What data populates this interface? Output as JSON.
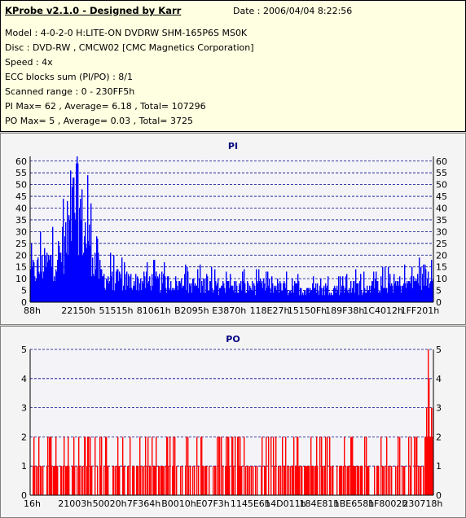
{
  "header": {
    "title": "KProbe v2.1.0 - Designed by Karr",
    "date": "Date : 2006/04/04 8:22:56",
    "lines": [
      "Model : 4-0-2-0 H:LITE-ON DVDRW SHM-165P6S MS0K",
      "Disc : DVD-RW , CMCW02 [CMC Magnetics Corporation]",
      "Speed : 4x",
      "ECC blocks sum (PI/PO) : 8/1",
      "Scanned range : 0 - 230FF5h",
      "PI Max= 62 , Average= 6.18 , Total= 107296",
      "PO Max= 5 , Average= 0.03 , Total= 3725"
    ]
  },
  "colors": {
    "pi_fill": "#0000ff",
    "po_fill": "#ff0000",
    "title_text": "#000080",
    "grid": "#00008b",
    "info_bg": "#ffffe1"
  },
  "chart_data": [
    {
      "type": "bar",
      "title": "PI",
      "ylim": [
        0,
        62
      ],
      "yticks": [
        0,
        5,
        10,
        15,
        20,
        25,
        30,
        35,
        40,
        45,
        50,
        55,
        60
      ],
      "xtick_labels": [
        "88h",
        "22150h",
        "51515h",
        "81061h",
        "B2095h",
        "E3870h",
        "118E27h",
        "15150Fh",
        "189F38h",
        "1C4012h",
        "1FF201h"
      ],
      "grid": true,
      "max": 62,
      "average": 6.18,
      "profile": [
        [
          0.0,
          17
        ],
        [
          0.02,
          19
        ],
        [
          0.04,
          22
        ],
        [
          0.06,
          24
        ],
        [
          0.08,
          30
        ],
        [
          0.09,
          38
        ],
        [
          0.1,
          48
        ],
        [
          0.108,
          56
        ],
        [
          0.115,
          62
        ],
        [
          0.13,
          43
        ],
        [
          0.15,
          32
        ],
        [
          0.16,
          24
        ],
        [
          0.175,
          15
        ],
        [
          0.2,
          13
        ],
        [
          0.25,
          12
        ],
        [
          0.3,
          12
        ],
        [
          0.35,
          11
        ],
        [
          0.4,
          10
        ],
        [
          0.45,
          10
        ],
        [
          0.5,
          9
        ],
        [
          0.55,
          9
        ],
        [
          0.6,
          9
        ],
        [
          0.65,
          8
        ],
        [
          0.7,
          8
        ],
        [
          0.75,
          8
        ],
        [
          0.8,
          9
        ],
        [
          0.85,
          9
        ],
        [
          0.9,
          10
        ],
        [
          0.95,
          11
        ],
        [
          0.98,
          16
        ],
        [
          1.0,
          13
        ]
      ]
    },
    {
      "type": "bar",
      "title": "PO",
      "ylim": [
        0,
        5
      ],
      "yticks": [
        0,
        1,
        2,
        3,
        4,
        5
      ],
      "xtick_labels": [
        "16h",
        "21003h",
        "50020h",
        "7F364h",
        "B0010h",
        "E07F3h",
        "1145E6h",
        "14D011h",
        "184E81h",
        "1BE658h",
        "1F8002h",
        "230718h"
      ],
      "grid": true,
      "max": 5,
      "average": 0.03
    }
  ]
}
